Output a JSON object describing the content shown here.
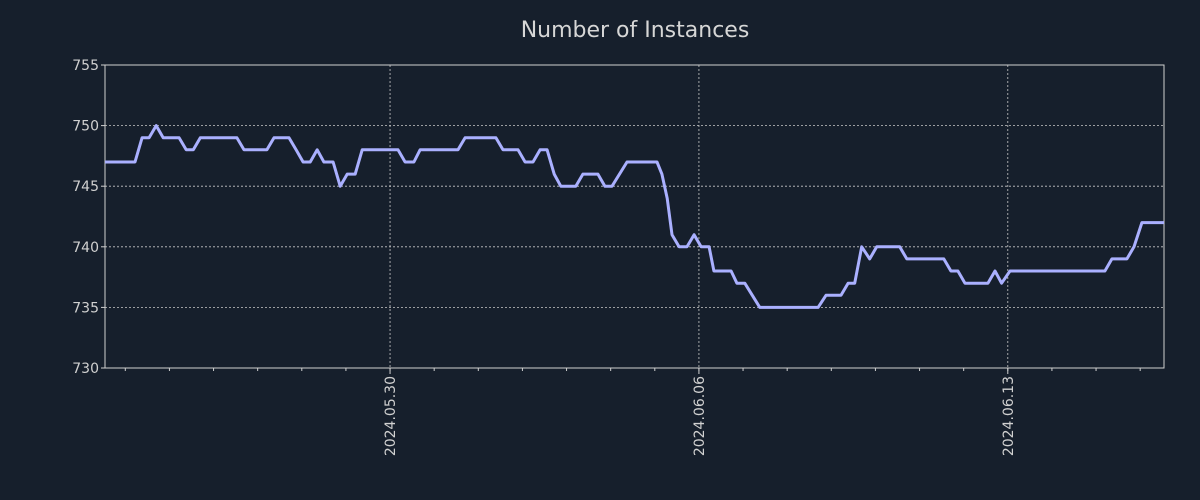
{
  "chart_data": {
    "type": "line",
    "title": "Number of Instances",
    "xlabel": "",
    "ylabel": "",
    "x_unit": "days relative to 2024.05.30",
    "xlim": [
      -6.46,
      17.54
    ],
    "ylim": [
      730,
      755
    ],
    "yticks": [
      730,
      735,
      740,
      745,
      750,
      755
    ],
    "ytick_labels": [
      "730",
      "735",
      "740",
      "745",
      "750",
      "755"
    ],
    "xticks": [
      0,
      7,
      14
    ],
    "xtick_labels": [
      "2024.05.30",
      "2024.06.06",
      "2024.06.13"
    ],
    "grid": true,
    "colors": {
      "background": "#161f2c",
      "line": "#aab0ff",
      "axis": "#d0d0d0",
      "grid": "#c8c8c8"
    },
    "series": [
      {
        "name": "Number of Instances",
        "x": [
          -6.46,
          -5.78,
          -5.62,
          -5.46,
          -5.3,
          -5.14,
          -4.78,
          -4.62,
          -4.46,
          -4.3,
          -3.47,
          -3.31,
          -2.79,
          -2.63,
          -2.29,
          -2.13,
          -1.97,
          -1.81,
          -1.65,
          -1.5,
          -1.29,
          -1.13,
          -0.97,
          -0.79,
          -0.63,
          0.18,
          0.34,
          0.54,
          0.68,
          1.54,
          1.7,
          2.4,
          2.56,
          2.9,
          3.06,
          3.24,
          3.4,
          3.56,
          3.72,
          3.87,
          4.21,
          4.37,
          4.71,
          4.87,
          5.03,
          5.37,
          6.05,
          6.16,
          6.28,
          6.39,
          6.55,
          6.73,
          6.89,
          7.05,
          7.23,
          7.34,
          7.73,
          7.86,
          8.04,
          8.38,
          9.7,
          9.88,
          10.22,
          10.38,
          10.53,
          10.69,
          10.87,
          11.03,
          11.55,
          11.71,
          12.55,
          12.71,
          12.87,
          13.03,
          13.55,
          13.71,
          13.86,
          14.05,
          16.2,
          16.36,
          16.7,
          16.86,
          17.04,
          17.54
        ],
        "y": [
          747,
          747,
          749,
          749,
          750,
          749,
          749,
          748,
          748,
          749,
          749,
          748,
          748,
          749,
          749,
          748,
          747,
          747,
          748,
          747,
          747,
          745,
          746,
          746,
          748,
          748,
          747,
          747,
          748,
          748,
          749,
          749,
          748,
          748,
          747,
          747,
          748,
          748,
          746,
          745,
          745,
          746,
          746,
          745,
          745,
          747,
          747,
          746,
          744,
          741,
          740,
          740,
          741,
          740,
          740,
          738,
          738,
          737,
          737,
          735,
          735,
          736,
          736,
          737,
          737,
          740,
          739,
          740,
          740,
          739,
          739,
          738,
          738,
          737,
          737,
          738,
          737,
          738,
          738,
          739,
          739,
          740,
          742,
          742
        ]
      }
    ]
  }
}
